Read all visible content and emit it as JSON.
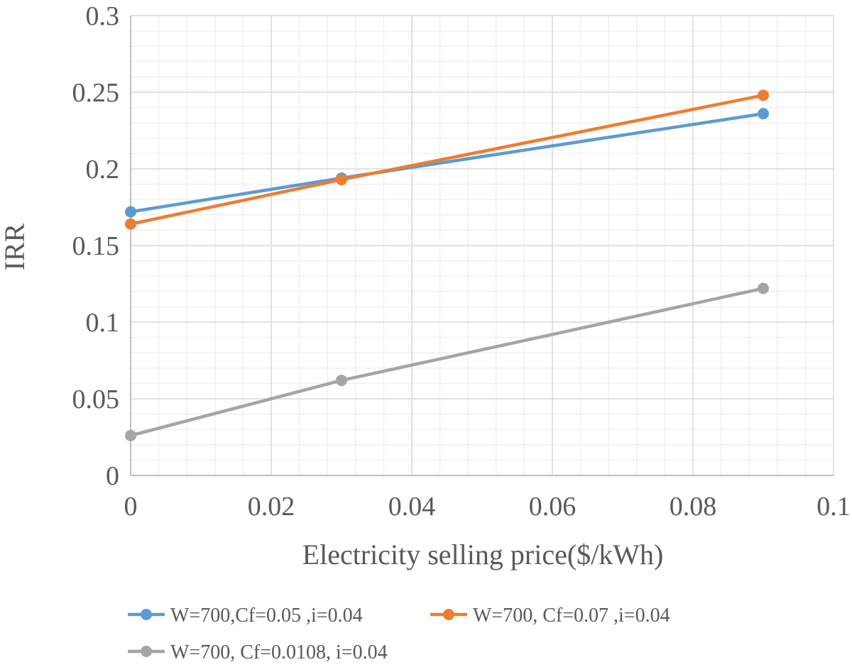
{
  "chart_data": {
    "type": "line",
    "title": "",
    "xlabel": "Electricity selling price($/kWh)",
    "ylabel": "IRR",
    "xlim": [
      0,
      0.1
    ],
    "ylim": [
      0,
      0.3
    ],
    "x_ticks": [
      "0",
      "0.02",
      "0.04",
      "0.06",
      "0.08",
      "0.1"
    ],
    "y_ticks": [
      "0",
      "0.05",
      "0.1",
      "0.15",
      "0.2",
      "0.25",
      "0.3"
    ],
    "grid": true,
    "minor_grid": true,
    "legend_position": "bottom",
    "series": [
      {
        "name": "W=700,Cf=0.05 ,i=0.04",
        "color": "#5b9bd5",
        "x": [
          0,
          0.03,
          0.09
        ],
        "y": [
          0.172,
          0.194,
          0.236
        ]
      },
      {
        "name": "W=700, Cf=0.07 ,i=0.04",
        "color": "#ed7d31",
        "x": [
          0,
          0.03,
          0.09
        ],
        "y": [
          0.164,
          0.193,
          0.248
        ]
      },
      {
        "name": "W=700, Cf=0.0108, i=0.04",
        "color": "#a5a5a5",
        "x": [
          0,
          0.03,
          0.09
        ],
        "y": [
          0.026,
          0.062,
          0.122
        ]
      }
    ]
  }
}
